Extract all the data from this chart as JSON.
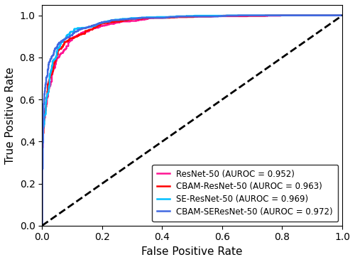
{
  "xlabel": "False Positive Rate",
  "ylabel": "True Positive Rate",
  "xlim": [
    0.0,
    1.0
  ],
  "ylim": [
    0.0,
    1.05
  ],
  "models": [
    {
      "label": "ResNet-50 (AUROC = 0.952)",
      "color": "#FF1493",
      "auroc": 0.952,
      "linewidth": 1.8,
      "seed": 10
    },
    {
      "label": "CBAM-ResNet-50 (AUROC = 0.963)",
      "color": "#FF0000",
      "auroc": 0.963,
      "linewidth": 1.8,
      "seed": 20
    },
    {
      "label": "SE-ResNet-50 (AUROC = 0.969)",
      "color": "#00BFFF",
      "auroc": 0.969,
      "linewidth": 1.8,
      "seed": 30
    },
    {
      "label": "CBAM-SEResNet-50 (AUROC = 0.972)",
      "color": "#4169E1",
      "auroc": 0.972,
      "linewidth": 1.8,
      "seed": 40
    }
  ],
  "diagonal_color": "black",
  "diagonal_linestyle": "--",
  "diagonal_linewidth": 2.0,
  "legend_loc": "lower right",
  "legend_fontsize": 8.5,
  "tick_fontsize": 10,
  "label_fontsize": 11,
  "figsize": [
    5.0,
    3.69
  ],
  "dpi": 100
}
